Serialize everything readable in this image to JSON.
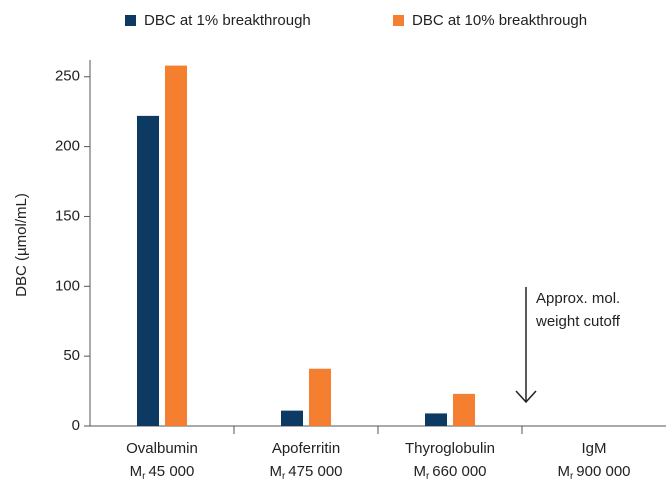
{
  "chart_data": {
    "type": "bar",
    "y_label": "DBC (µmol/mL)",
    "categories": [
      "Ovalbumin",
      "Apoferritin",
      "Thyroglobulin",
      "IgM"
    ],
    "mw_symbol": "M",
    "mw_subscript": "r",
    "mw": [
      "45 000",
      "475 000",
      "660 000",
      "900 000"
    ],
    "series": [
      {
        "name": "DBC at 1% breakthrough",
        "color": "#0d3a63",
        "values": [
          222,
          11,
          9,
          null
        ]
      },
      {
        "name": "DBC at 10% breakthrough",
        "color": "#f47f30",
        "values": [
          258,
          41,
          23,
          null
        ]
      }
    ],
    "ylim": [
      0,
      262
    ],
    "yticks": [
      0,
      50,
      100,
      150,
      200,
      250
    ],
    "legend": "top",
    "annotation": [
      "Approx. mol.",
      "weight cutoff"
    ]
  }
}
